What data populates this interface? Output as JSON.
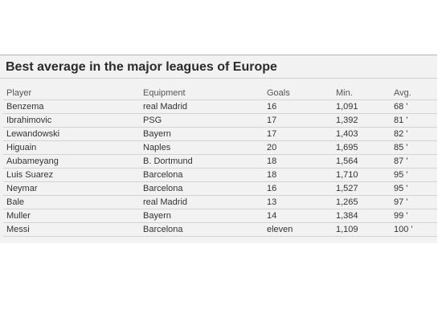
{
  "widget": {
    "title": "Best average in the major leagues of Europe"
  },
  "table": {
    "headers": {
      "player": "Player",
      "team": "Equipment",
      "goals": "Goals",
      "minutes": "Min.",
      "average": "Avg."
    },
    "rows": [
      {
        "player": "Benzema",
        "team": "real Madrid",
        "goals": "16",
        "minutes": "1,091",
        "average": "68 '"
      },
      {
        "player": "Ibrahimovic",
        "team": "PSG",
        "goals": "17",
        "minutes": "1,392",
        "average": "81 '"
      },
      {
        "player": "Lewandowski",
        "team": "Bayern",
        "goals": "17",
        "minutes": "1,403",
        "average": "82 '"
      },
      {
        "player": "Higuain",
        "team": "Naples",
        "goals": "20",
        "minutes": "1,695",
        "average": "85 '"
      },
      {
        "player": "Aubameyang",
        "team": "B. Dortmund",
        "goals": "18",
        "minutes": "1,564",
        "average": "87 '"
      },
      {
        "player": "Luis Suarez",
        "team": "Barcelona",
        "goals": "18",
        "minutes": "1,710",
        "average": "95 '"
      },
      {
        "player": "Neymar",
        "team": "Barcelona",
        "goals": "16",
        "minutes": "1,527",
        "average": "95 '"
      },
      {
        "player": "Bale",
        "team": "real Madrid",
        "goals": "13",
        "minutes": "1,265",
        "average": "97 '"
      },
      {
        "player": "Muller",
        "team": "Bayern",
        "goals": "14",
        "minutes": "1,384",
        "average": "99 '"
      },
      {
        "player": "Messi",
        "team": "Barcelona",
        "goals": "eleven",
        "minutes": "1,109",
        "average": "100 '"
      }
    ]
  }
}
